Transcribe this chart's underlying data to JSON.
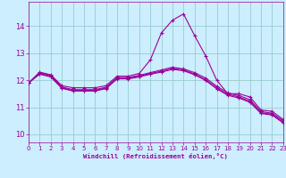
{
  "xlabel": "Windchill (Refroidissement éolien,°C)",
  "xlim": [
    0,
    23
  ],
  "ylim": [
    9.7,
    14.9
  ],
  "yticks": [
    10,
    11,
    12,
    13,
    14
  ],
  "xticks": [
    0,
    1,
    2,
    3,
    4,
    5,
    6,
    7,
    8,
    9,
    10,
    11,
    12,
    13,
    14,
    15,
    16,
    17,
    18,
    19,
    20,
    21,
    22,
    23
  ],
  "bg_color": "#cceeff",
  "grid_color": "#99cccc",
  "line_color": "#990099",
  "lines": [
    [
      11.9,
      12.3,
      12.2,
      11.8,
      11.72,
      11.72,
      11.72,
      11.8,
      12.15,
      12.15,
      12.25,
      12.75,
      13.75,
      14.22,
      14.45,
      13.65,
      12.9,
      12.0,
      11.5,
      11.5,
      11.38,
      10.9,
      10.85,
      10.55
    ],
    [
      11.9,
      12.28,
      12.18,
      11.75,
      11.65,
      11.65,
      11.65,
      11.74,
      12.1,
      12.1,
      12.18,
      12.28,
      12.38,
      12.48,
      12.42,
      12.28,
      12.08,
      11.78,
      11.53,
      11.43,
      11.28,
      10.84,
      10.78,
      10.5
    ],
    [
      11.9,
      12.25,
      12.15,
      11.72,
      11.62,
      11.62,
      11.62,
      11.71,
      12.07,
      12.07,
      12.15,
      12.25,
      12.33,
      12.43,
      12.38,
      12.23,
      12.02,
      11.72,
      11.48,
      11.38,
      11.22,
      10.8,
      10.74,
      10.45
    ],
    [
      11.9,
      12.22,
      12.12,
      11.7,
      11.6,
      11.6,
      11.6,
      11.69,
      12.05,
      12.05,
      12.12,
      12.22,
      12.3,
      12.4,
      12.35,
      12.2,
      11.99,
      11.68,
      11.44,
      11.34,
      11.18,
      10.77,
      10.71,
      10.42
    ]
  ]
}
